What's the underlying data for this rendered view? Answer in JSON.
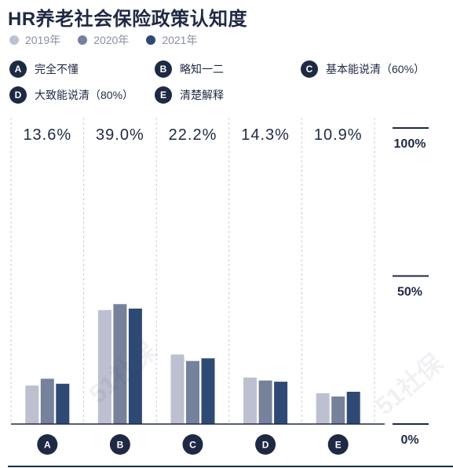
{
  "title": "HR养老社会保险政策认知度",
  "legend_years": [
    {
      "label": "2019年",
      "color": "#bcc0d0"
    },
    {
      "label": "2020年",
      "color": "#76819c"
    },
    {
      "label": "2021年",
      "color": "#2e4a74"
    }
  ],
  "category_legend": [
    {
      "letter": "A",
      "label": "完全不懂"
    },
    {
      "letter": "B",
      "label": "略知一二"
    },
    {
      "letter": "C",
      "label": "基本能说清（60%）"
    },
    {
      "letter": "D",
      "label": "大致能说清（80%）"
    },
    {
      "letter": "E",
      "label": "清楚解释"
    }
  ],
  "watermark_text": "51社保",
  "chart_data": {
    "type": "bar",
    "categories": [
      "A",
      "B",
      "C",
      "D",
      "E"
    ],
    "column_labels": [
      "13.6%",
      "39.0%",
      "22.2%",
      "14.3%",
      "10.9%"
    ],
    "series": [
      {
        "name": "2019年",
        "color": "#bcc0d0",
        "values": [
          13.0,
          38.5,
          23.5,
          15.7,
          10.4
        ]
      },
      {
        "name": "2020年",
        "color": "#76819c",
        "values": [
          15.3,
          40.5,
          21.3,
          14.7,
          9.3
        ]
      },
      {
        "name": "2021年",
        "color": "#2e4a74",
        "values": [
          13.6,
          39.0,
          22.2,
          14.3,
          10.9
        ]
      }
    ],
    "yticks": [
      "0%",
      "50%",
      "100%"
    ],
    "ylim": [
      0,
      100
    ],
    "grid": false,
    "legend": "top-left"
  }
}
